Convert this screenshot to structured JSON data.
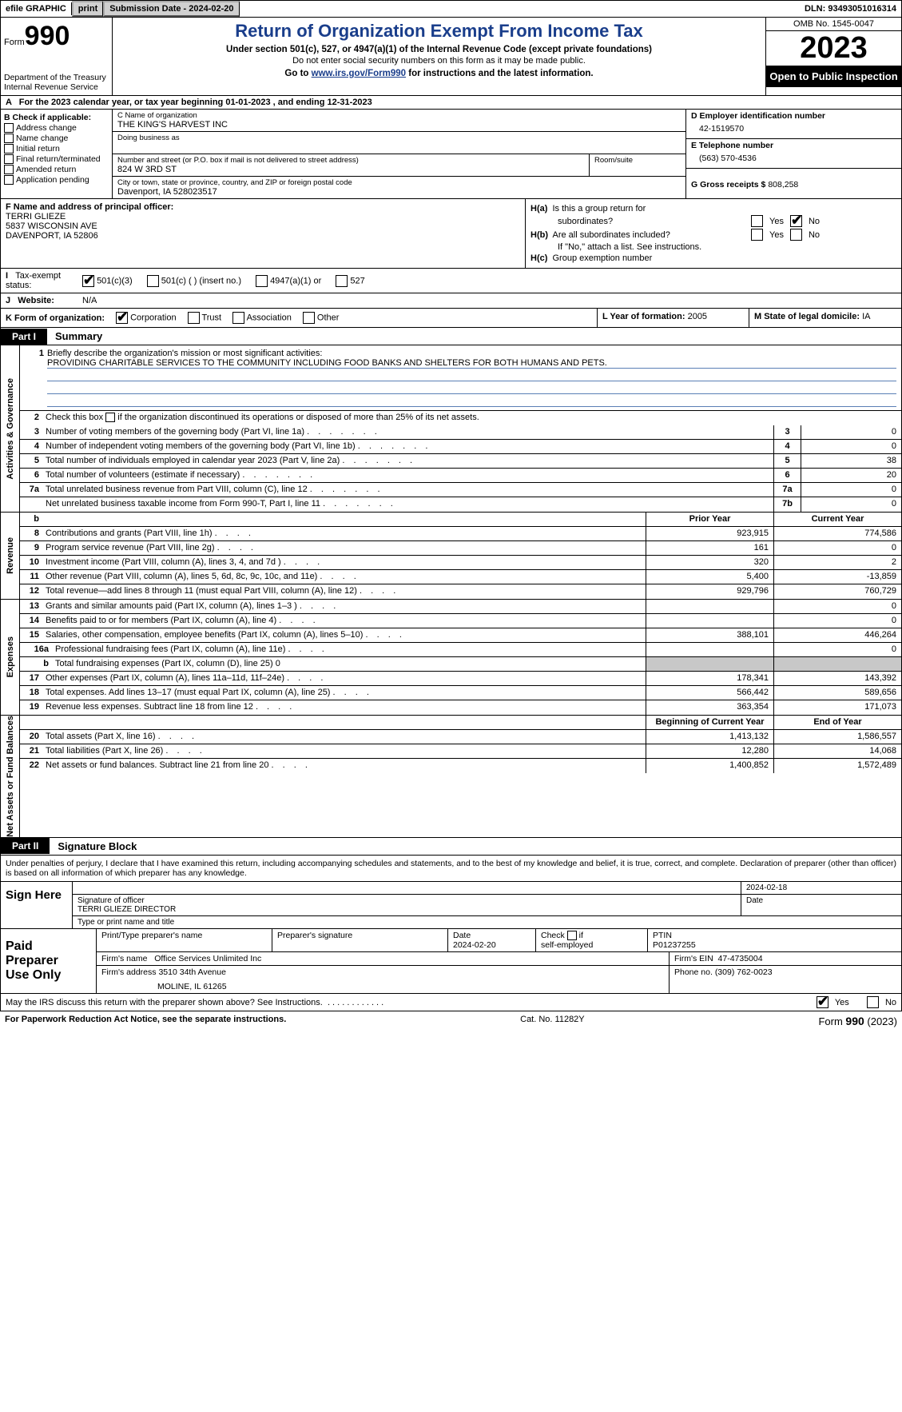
{
  "colors": {
    "link": "#1a3e8b",
    "shaded": "#c8c8c8",
    "black": "#000000",
    "white": "#ffffff",
    "button_bg": "#d0d0d0",
    "mission_rule": "#5a7fb5"
  },
  "topbar": {
    "efile": "efile GRAPHIC",
    "print": "print",
    "submission": "Submission Date - 2024-02-20",
    "dln": "DLN: 93493051016314"
  },
  "header": {
    "form_label": "Form",
    "form_number": "990",
    "dept": "Department of the Treasury",
    "irs": "Internal Revenue Service",
    "title": "Return of Organization Exempt From Income Tax",
    "sub1": "Under section 501(c), 527, or 4947(a)(1) of the Internal Revenue Code (except private foundations)",
    "sub2": "Do not enter social security numbers on this form as it may be made public.",
    "sub3_pre": "Go to ",
    "sub3_link": "www.irs.gov/Form990",
    "sub3_post": " for instructions and the latest information.",
    "omb": "OMB No. 1545-0047",
    "year": "2023",
    "open": "Open to Public Inspection"
  },
  "line_a": "For the 2023 calendar year, or tax year beginning 01-01-2023   , and ending 12-31-2023",
  "col_b": {
    "header": "B Check if applicable:",
    "items": [
      "Address change",
      "Name change",
      "Initial return",
      "Final return/terminated",
      "Amended return",
      "Application pending"
    ]
  },
  "col_c": {
    "name_lbl": "C Name of organization",
    "name": "THE KING'S HARVEST INC",
    "dba_lbl": "Doing business as",
    "street_lbl": "Number and street (or P.O. box if mail is not delivered to street address)",
    "street": "824 W 3RD ST",
    "room_lbl": "Room/suite",
    "city_lbl": "City or town, state or province, country, and ZIP or foreign postal code",
    "city": "Davenport, IA  528023517"
  },
  "col_d": {
    "d_lbl": "D Employer identification number",
    "ein": "42-1519570",
    "e_lbl": "E Telephone number",
    "phone": "(563) 570-4536",
    "g_lbl": "G Gross receipts $",
    "gross": "808,258"
  },
  "f": {
    "lbl": "F  Name and address of principal officer:",
    "name": "TERRI GLIEZE",
    "addr1": "5837 WISCONSIN AVE",
    "addr2": "DAVENPORT, IA  52806"
  },
  "h": {
    "a_lbl": "H(a)  Is this a group return for subordinates?",
    "b_lbl": "H(b)  Are all subordinates included?",
    "b_note": "If \"No,\" attach a list. See instructions.",
    "c_lbl": "H(c)  Group exemption number",
    "yes": "Yes",
    "no": "No",
    "a_answer": "No"
  },
  "i": {
    "lbl": "Tax-exempt status:",
    "items": [
      "501(c)(3)",
      "501(c) (  ) (insert no.)",
      "4947(a)(1) or",
      "527"
    ],
    "checked": 0
  },
  "j": {
    "lbl": "Website:",
    "val": "N/A"
  },
  "k": {
    "lbl": "K Form of organization:",
    "items": [
      "Corporation",
      "Trust",
      "Association",
      "Other"
    ],
    "checked": 0
  },
  "l": {
    "lbl": "L Year of formation:",
    "val": "2005"
  },
  "m": {
    "lbl": "M State of legal domicile:",
    "val": "IA"
  },
  "part1": {
    "tag": "Part I",
    "title": "Summary"
  },
  "gov": {
    "label": "Activities & Governance",
    "line1_lbl": "Briefly describe the organization's mission or most significant activities:",
    "mission": "PROVIDING CHARITABLE SERVICES TO THE COMMUNITY INCLUDING FOOD BANKS AND SHELTERS FOR BOTH HUMANS AND PETS.",
    "line2": "Check this box       if the organization discontinued its operations or disposed of more than 25% of its net assets.",
    "rows": [
      {
        "n": "3",
        "d": "Number of voting members of the governing body (Part VI, line 1a)",
        "k": "3",
        "v": "0"
      },
      {
        "n": "4",
        "d": "Number of independent voting members of the governing body (Part VI, line 1b)",
        "k": "4",
        "v": "0"
      },
      {
        "n": "5",
        "d": "Total number of individuals employed in calendar year 2023 (Part V, line 2a)",
        "k": "5",
        "v": "38"
      },
      {
        "n": "6",
        "d": "Total number of volunteers (estimate if necessary)",
        "k": "6",
        "v": "20"
      },
      {
        "n": "7a",
        "d": "Total unrelated business revenue from Part VIII, column (C), line 12",
        "k": "7a",
        "v": "0"
      },
      {
        "n": "",
        "d": "Net unrelated business taxable income from Form 990-T, Part I, line 11",
        "k": "7b",
        "v": "0"
      }
    ]
  },
  "rev": {
    "label": "Revenue",
    "hdr_b": "b",
    "hdr_prior": "Prior Year",
    "hdr_curr": "Current Year",
    "rows": [
      {
        "n": "8",
        "d": "Contributions and grants (Part VIII, line 1h)",
        "p": "923,915",
        "c": "774,586"
      },
      {
        "n": "9",
        "d": "Program service revenue (Part VIII, line 2g)",
        "p": "161",
        "c": "0"
      },
      {
        "n": "10",
        "d": "Investment income (Part VIII, column (A), lines 3, 4, and 7d )",
        "p": "320",
        "c": "2"
      },
      {
        "n": "11",
        "d": "Other revenue (Part VIII, column (A), lines 5, 6d, 8c, 9c, 10c, and 11e)",
        "p": "5,400",
        "c": "-13,859"
      },
      {
        "n": "12",
        "d": "Total revenue—add lines 8 through 11 (must equal Part VIII, column (A), line 12)",
        "p": "929,796",
        "c": "760,729"
      }
    ]
  },
  "exp": {
    "label": "Expenses",
    "rows": [
      {
        "n": "13",
        "d": "Grants and similar amounts paid (Part IX, column (A), lines 1–3 )",
        "p": "",
        "c": "0"
      },
      {
        "n": "14",
        "d": "Benefits paid to or for members (Part IX, column (A), line 4)",
        "p": "",
        "c": "0"
      },
      {
        "n": "15",
        "d": "Salaries, other compensation, employee benefits (Part IX, column (A), lines 5–10)",
        "p": "388,101",
        "c": "446,264"
      },
      {
        "n": "16a",
        "d": "Professional fundraising fees (Part IX, column (A), line 11e)",
        "p": "",
        "c": "0"
      },
      {
        "n": "b",
        "d": "Total fundraising expenses (Part IX, column (D), line 25) 0",
        "p": "SHADE",
        "c": "SHADE"
      },
      {
        "n": "17",
        "d": "Other expenses (Part IX, column (A), lines 11a–11d, 11f–24e)",
        "p": "178,341",
        "c": "143,392"
      },
      {
        "n": "18",
        "d": "Total expenses. Add lines 13–17 (must equal Part IX, column (A), line 25)",
        "p": "566,442",
        "c": "589,656"
      },
      {
        "n": "19",
        "d": "Revenue less expenses. Subtract line 18 from line 12",
        "p": "363,354",
        "c": "171,073"
      }
    ]
  },
  "net": {
    "label": "Net Assets or Fund Balances",
    "hdr_beg": "Beginning of Current Year",
    "hdr_end": "End of Year",
    "rows": [
      {
        "n": "20",
        "d": "Total assets (Part X, line 16)",
        "p": "1,413,132",
        "c": "1,586,557"
      },
      {
        "n": "21",
        "d": "Total liabilities (Part X, line 26)",
        "p": "12,280",
        "c": "14,068"
      },
      {
        "n": "22",
        "d": "Net assets or fund balances. Subtract line 21 from line 20",
        "p": "1,400,852",
        "c": "1,572,489"
      }
    ]
  },
  "part2": {
    "tag": "Part II",
    "title": "Signature Block"
  },
  "sig": {
    "perjury": "Under penalties of perjury, I declare that I have examined this return, including accompanying schedules and statements, and to the best of my knowledge and belief, it is true, correct, and complete. Declaration of preparer (other than officer) is based on all information of which preparer has any knowledge.",
    "sign_here": "Sign Here",
    "date": "2024-02-18",
    "sig_lbl": "Signature of officer",
    "officer": "TERRI GLIEZE  DIRECTOR",
    "type_lbl": "Type or print name and title",
    "date_lbl": "Date"
  },
  "prep": {
    "title": "Paid Preparer Use Only",
    "ptname_lbl": "Print/Type preparer's name",
    "psig_lbl": "Preparer's signature",
    "date_lbl": "Date",
    "date": "2024-02-20",
    "self_lbl": "Check         if self-employed",
    "ptin_lbl": "PTIN",
    "ptin": "P01237255",
    "firm_name_lbl": "Firm's name",
    "firm_name": "Office Services Unlimited Inc",
    "firm_ein_lbl": "Firm's EIN",
    "firm_ein": "47-4735004",
    "firm_addr_lbl": "Firm's address",
    "firm_addr1": "3510 34th Avenue",
    "firm_addr2": "MOLINE, IL  61265",
    "phone_lbl": "Phone no.",
    "phone": "(309) 762-0023"
  },
  "discuss": {
    "text": "May the IRS discuss this return with the preparer shown above? See Instructions.",
    "yes": "Yes",
    "no": "No",
    "answer": "Yes"
  },
  "footer": {
    "left": "For Paperwork Reduction Act Notice, see the separate instructions.",
    "cat": "Cat. No. 11282Y",
    "form": "Form 990 (2023)"
  }
}
